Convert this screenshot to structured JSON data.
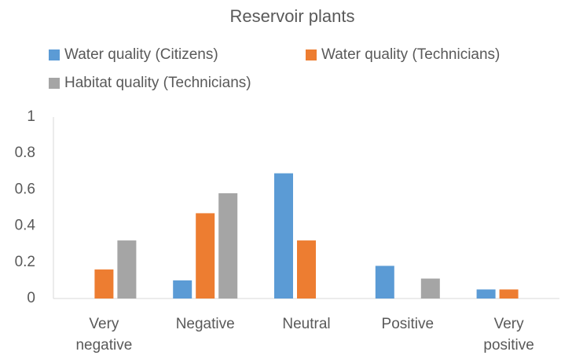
{
  "chart_data": {
    "type": "bar",
    "title": "Reservoir plants",
    "categories": [
      "Very negative",
      "Negative",
      "Neutral",
      "Positive",
      "Very positive"
    ],
    "series": [
      {
        "name": "Water quality (Citizens)",
        "color": "#5b9bd5",
        "values": [
          0,
          0.1,
          0.69,
          0.18,
          0.05
        ]
      },
      {
        "name": "Water quality (Technicians)",
        "color": "#ed7d31",
        "values": [
          0.16,
          0.47,
          0.32,
          0,
          0.05
        ]
      },
      {
        "name": "Habitat quality (Technicians)",
        "color": "#a5a5a5",
        "values": [
          0.32,
          0.58,
          0,
          0.11,
          0
        ]
      }
    ],
    "ylim": [
      0,
      1
    ],
    "yticks": [
      0,
      0.2,
      0.4,
      0.6,
      0.8,
      1
    ],
    "grid": false,
    "legend": "top"
  }
}
